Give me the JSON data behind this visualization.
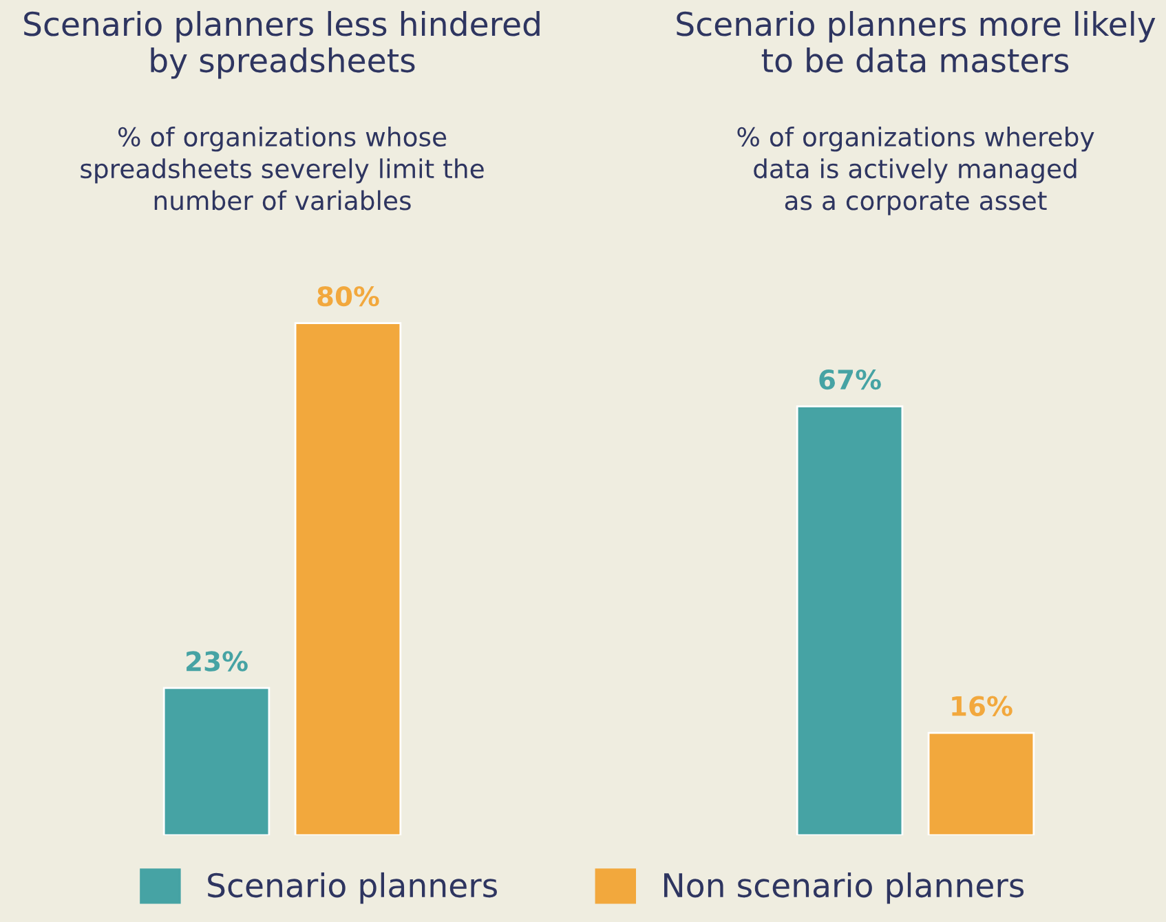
{
  "chart_data": [
    {
      "type": "bar",
      "title": "Scenario planners less hindered\nby spreadsheets",
      "subtitle": "% of organizations whose\nspreadsheets severely limit the\nnumber of variables",
      "categories": [
        null
      ],
      "series": [
        {
          "name": "Scenario planners",
          "color": "#46a3a4",
          "values": [
            23
          ],
          "value_labels": [
            "23%"
          ]
        },
        {
          "name": "Non scenario planners",
          "color": "#f2a83d",
          "values": [
            80
          ],
          "value_labels": [
            "80%"
          ]
        }
      ],
      "legend": "bottom"
    },
    {
      "type": "bar",
      "title": "Scenario planners more likely\nto be data masters",
      "subtitle": "% of organizations whereby\ndata is actively managed\nas a corporate asset",
      "categories": [
        null
      ],
      "series": [
        {
          "color": "#46a3a4",
          "values": [
            67
          ],
          "value_labels": [
            "67%"
          ]
        },
        {
          "color": "#f2a83d",
          "values": [
            16
          ],
          "value_labels": [
            "16%"
          ]
        }
      ]
    }
  ]
}
